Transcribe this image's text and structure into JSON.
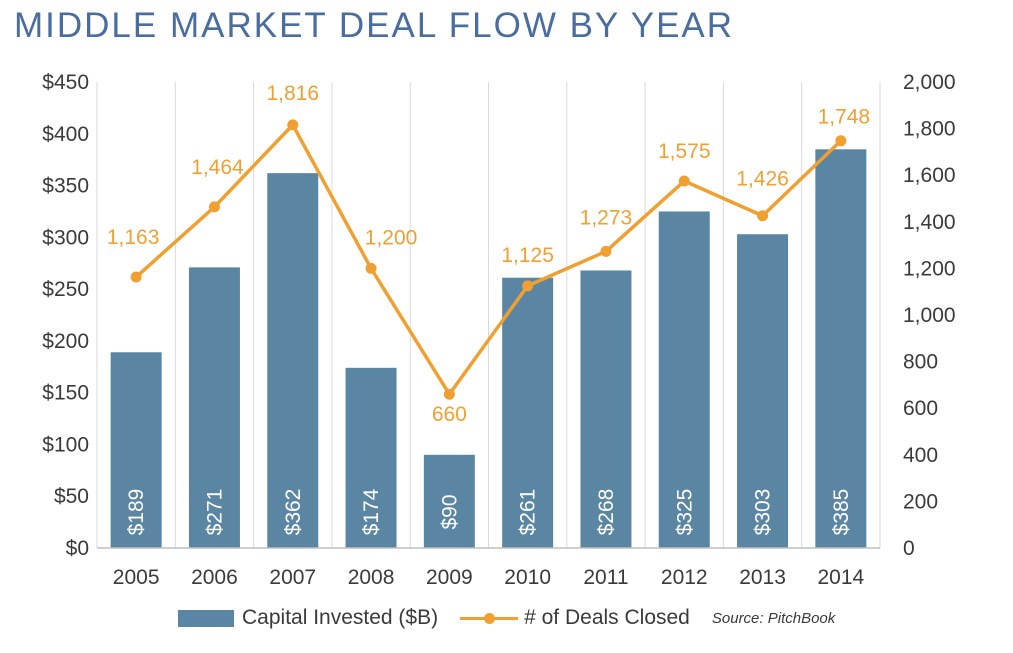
{
  "title": "MIDDLE MARKET DEAL FLOW BY YEAR",
  "colors": {
    "bar": "#5b86a3",
    "line": "#f0a030",
    "title": "#4a6d9f",
    "grid": "#d9d9d9"
  },
  "chart_data": {
    "type": "bar",
    "title": "MIDDLE MARKET DEAL FLOW BY YEAR",
    "categories": [
      "2005",
      "2006",
      "2007",
      "2008",
      "2009",
      "2010",
      "2011",
      "2012",
      "2013",
      "2014"
    ],
    "series": [
      {
        "name": "Capital Invested ($B)",
        "type": "bar",
        "axis": "left",
        "values": [
          189,
          271,
          362,
          174,
          90,
          261,
          268,
          325,
          303,
          385
        ],
        "labels": [
          "$189",
          "$271",
          "$362",
          "$174",
          "$90",
          "$261",
          "$268",
          "$325",
          "$303",
          "$385"
        ]
      },
      {
        "name": "# of Deals Closed",
        "type": "line",
        "axis": "right",
        "values": [
          1163,
          1464,
          1816,
          1200,
          660,
          1125,
          1273,
          1575,
          1426,
          1748
        ],
        "labels": [
          "1,163",
          "1,464",
          "1,816",
          "1,200",
          "660",
          "1,125",
          "1,273",
          "1,575",
          "1,426",
          "1,748"
        ]
      }
    ],
    "y_left": {
      "range": [
        0,
        450
      ],
      "ticks": [
        0,
        50,
        100,
        150,
        200,
        250,
        300,
        350,
        400,
        450
      ],
      "tick_labels": [
        "$0",
        "$50",
        "$100",
        "$150",
        "$200",
        "$250",
        "$300",
        "$350",
        "$400",
        "$450"
      ]
    },
    "y_right": {
      "range": [
        0,
        2000
      ],
      "ticks": [
        0,
        200,
        400,
        600,
        800,
        1000,
        1200,
        1400,
        1600,
        1800,
        2000
      ],
      "tick_labels": [
        "0",
        "200",
        "400",
        "600",
        "800",
        "1,000",
        "1,200",
        "1,400",
        "1,600",
        "1,800",
        "2,000"
      ]
    },
    "grid": "vertical",
    "legend": "bottom"
  },
  "legend": {
    "bar_label": "Capital Invested ($B)",
    "line_label": "# of Deals Closed",
    "source": "Source: PitchBook"
  }
}
